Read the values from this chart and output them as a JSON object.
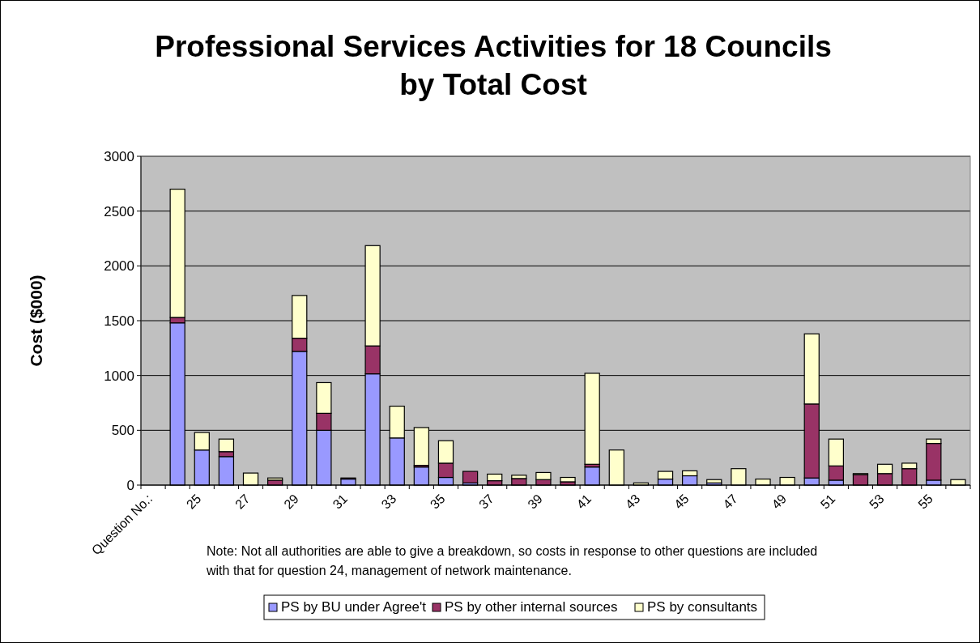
{
  "chart_data": {
    "type": "bar",
    "title": "Professional Services Activities for 18 Councils\nby Total Cost",
    "ylabel": "Cost ($000)",
    "xlabel": "Question No.:",
    "categories": [
      null,
      null,
      "25",
      null,
      "27",
      null,
      "29",
      null,
      "31",
      null,
      "33",
      null,
      "35",
      null,
      "37",
      null,
      "39",
      null,
      "41",
      null,
      "43",
      null,
      "45",
      null,
      "47",
      null,
      "49",
      null,
      "51",
      null,
      "53",
      null,
      "55",
      null
    ],
    "stacked": true,
    "series": [
      {
        "name": "PS by BU under Agree't",
        "color": "#9999ff",
        "values": [
          null,
          1480,
          320,
          260,
          0,
          0,
          1220,
          500,
          55,
          1015,
          430,
          165,
          70,
          20,
          0,
          0,
          0,
          0,
          165,
          0,
          0,
          55,
          85,
          20,
          0,
          0,
          0,
          65,
          45,
          0,
          0,
          0,
          45,
          0
        ]
      },
      {
        "name": "PS by other internal sources",
        "color": "#993366",
        "values": [
          null,
          50,
          0,
          45,
          0,
          45,
          120,
          155,
          10,
          255,
          0,
          15,
          130,
          105,
          40,
          60,
          50,
          30,
          25,
          0,
          0,
          0,
          0,
          0,
          0,
          0,
          0,
          675,
          130,
          95,
          105,
          150,
          335,
          0
        ]
      },
      {
        "name": "PS by consultants",
        "color": "#ffffcc",
        "values": [
          null,
          1170,
          160,
          115,
          110,
          20,
          390,
          280,
          0,
          915,
          290,
          345,
          205,
          0,
          60,
          30,
          65,
          40,
          830,
          320,
          20,
          70,
          45,
          30,
          150,
          55,
          70,
          640,
          245,
          10,
          85,
          50,
          40,
          50
        ]
      }
    ],
    "ylim": [
      0,
      3000
    ],
    "yticks": [
      0,
      500,
      1000,
      1500,
      2000,
      2500,
      3000
    ],
    "grid": "y",
    "legend": "bottom",
    "annotations": [
      "Note: Not all authorities are able to give a breakdown, so costs in response to other questions are included with that for question 24, management of network maintenance."
    ]
  }
}
